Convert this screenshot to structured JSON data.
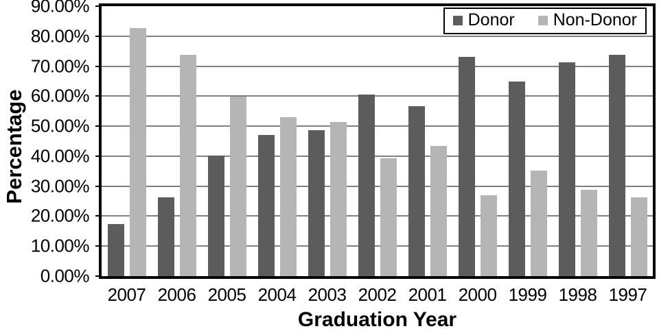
{
  "chart_data": {
    "type": "bar",
    "title": "",
    "xlabel": "Graduation Year",
    "ylabel": "Percentage",
    "categories": [
      "2007",
      "2006",
      "2005",
      "2004",
      "2003",
      "2002",
      "2001",
      "2000",
      "1999",
      "1998",
      "1997"
    ],
    "series": [
      {
        "name": "Donor",
        "color": "#5c5c5c",
        "values": [
          17.3,
          26.3,
          40.2,
          47.0,
          48.6,
          60.6,
          56.6,
          73.0,
          64.8,
          71.2,
          73.8
        ]
      },
      {
        "name": "Non-Donor",
        "color": "#b5b5b5",
        "values": [
          82.7,
          73.7,
          59.8,
          53.0,
          51.4,
          39.4,
          43.4,
          27.0,
          35.2,
          28.8,
          26.2
        ]
      }
    ],
    "ylim": [
      0,
      90
    ],
    "yticks": [
      {
        "value": 0,
        "label": "0.00%"
      },
      {
        "value": 10,
        "label": "10.00%"
      },
      {
        "value": 20,
        "label": "20.00%"
      },
      {
        "value": 30,
        "label": "30.00%"
      },
      {
        "value": 40,
        "label": "40.00%"
      },
      {
        "value": 50,
        "label": "50.00%"
      },
      {
        "value": 60,
        "label": "60.00%"
      },
      {
        "value": 70,
        "label": "70.00%"
      },
      {
        "value": 80,
        "label": "80.00%"
      },
      {
        "value": 90,
        "label": "90.00%"
      }
    ],
    "grid": true,
    "gridline_color": "#7f7f7f",
    "legend_position": "top-right"
  }
}
